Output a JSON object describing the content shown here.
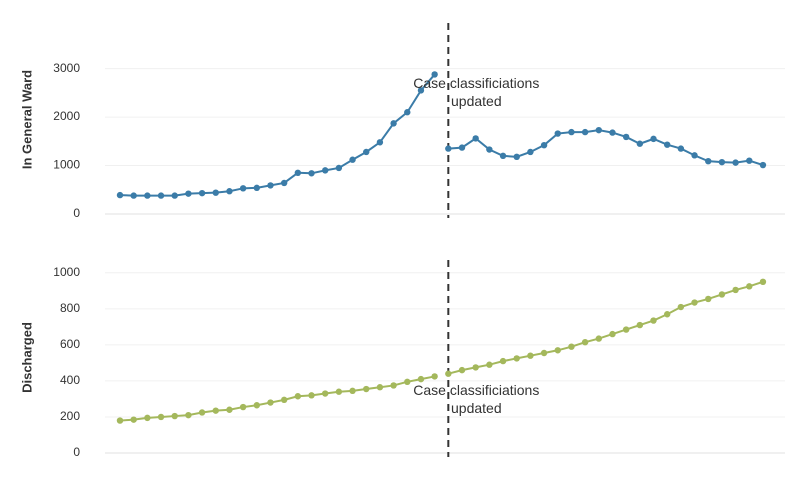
{
  "chart_data": [
    {
      "type": "line",
      "ylabel": "In General Ward",
      "ylim": [
        0,
        3900
      ],
      "yticks": [
        0,
        1000,
        2000,
        3000
      ],
      "grid": true,
      "series": [
        {
          "color": "#3b7ca8",
          "values": [
            390,
            380,
            380,
            380,
            380,
            420,
            430,
            440,
            470,
            530,
            540,
            590,
            640,
            850,
            840,
            900,
            950,
            1120,
            1280,
            1480,
            1870,
            2100,
            2550,
            2880,
            1350,
            1370,
            1560,
            1330,
            1200,
            1180,
            1280,
            1420,
            1660,
            1690,
            1690,
            1730,
            1680,
            1590,
            1450,
            1550,
            1430,
            1350,
            1210,
            1090,
            1070,
            1060,
            1100,
            1010
          ]
        }
      ],
      "annotation": {
        "text": "Case classificiations updated",
        "x": 24
      }
    },
    {
      "type": "line",
      "ylabel": "Discharged",
      "ylim": [
        0,
        1060
      ],
      "yticks": [
        0,
        200,
        400,
        600,
        800,
        1000
      ],
      "grid": true,
      "series": [
        {
          "color": "#a4b85c",
          "values": [
            180,
            185,
            195,
            200,
            205,
            210,
            225,
            235,
            240,
            255,
            265,
            280,
            295,
            315,
            320,
            330,
            340,
            345,
            355,
            365,
            375,
            395,
            410,
            425,
            440,
            460,
            475,
            490,
            510,
            525,
            540,
            555,
            570,
            590,
            615,
            635,
            660,
            685,
            710,
            735,
            770,
            810,
            835,
            855,
            880,
            905,
            925,
            950
          ]
        }
      ],
      "annotation": {
        "text": "Case classificiations updated",
        "x": 24
      }
    }
  ]
}
